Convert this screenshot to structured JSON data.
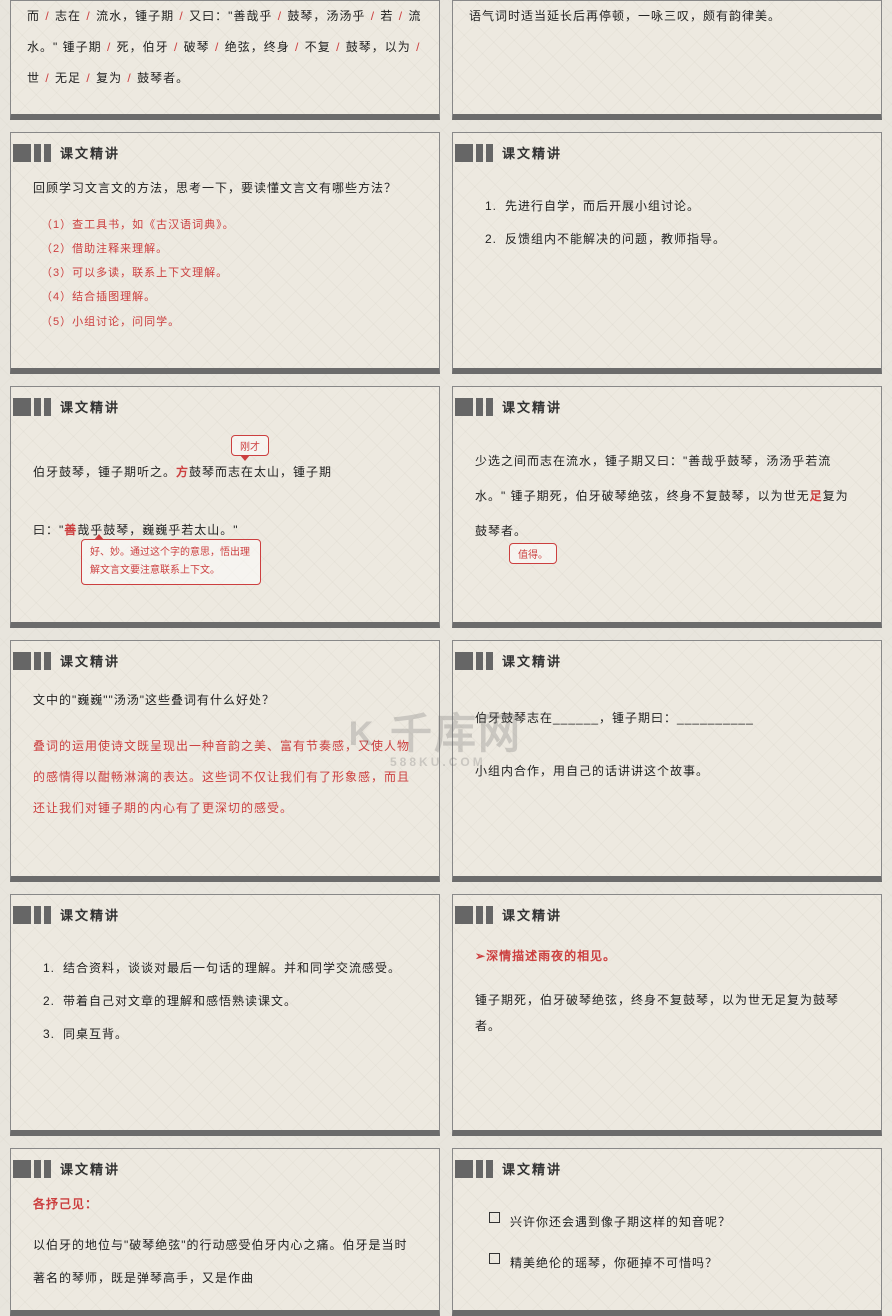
{
  "section_title": "课文精讲",
  "colors": {
    "red": "#cc3f3f",
    "bg": "#ede9e0",
    "border_bottom": "#6b6b6b",
    "text": "#222222"
  },
  "slides": {
    "s1_left": {
      "text_parts": [
        "而",
        "志在",
        "流水，锺子期",
        "又曰：\"善哉乎",
        "鼓琴，汤汤乎",
        "若",
        "流水。\" 锺子期",
        "死，伯牙",
        "破琴",
        "绝弦，终身",
        "不复",
        "鼓琴，以为",
        "世",
        "无足",
        "复为",
        "鼓琴者。"
      ]
    },
    "s1_right": {
      "text": "语气词时适当延长后再停顿，一咏三叹，颇有韵律美。"
    },
    "s2_left": {
      "question": "回顾学习文言文的方法，思考一下，要读懂文言文有哪些方法？",
      "items": [
        "（1）查工具书，如《古汉语词典》。",
        "（2）借助注释来理解。",
        "（3）可以多读，联系上下文理解。",
        "（4）结合插图理解。",
        "（5）小组讨论，问同学。"
      ]
    },
    "s2_right": {
      "items": [
        "先进行自学，而后开展小组讨论。",
        "反馈组内不能解决的问题，教师指导。"
      ]
    },
    "s3_left": {
      "callout1": "刚才",
      "line1_pre": "伯牙鼓琴，锺子期听之。",
      "fang": "方",
      "line1_post": "鼓琴而志在太山，锺子期",
      "line2_pre": "曰：\"",
      "shan": "善",
      "line2_post": "哉乎鼓琴，巍巍乎若太山。\"",
      "callout2": "好、妙。通过这个字的意思，悟出理解文言文要注意联系上下文。"
    },
    "s3_right": {
      "text": "少选之间而志在流水，锺子期又曰：\"善哉乎鼓琴，汤汤乎若流水。\" 锺子期死，伯牙破琴绝弦，终身不复鼓琴，以为世无",
      "zu": "足",
      "text_end": "复为鼓琴者。",
      "callout3": "值得。"
    },
    "s4_left": {
      "question": "文中的\"巍巍\"\"汤汤\"这些叠词有什么好处？",
      "answer": "叠词的运用使诗文既呈现出一种音韵之美、富有节奏感，又使人物的感情得以酣畅淋漓的表达。这些词不仅让我们有了形象感，而且还让我们对锺子期的内心有了更深切的感受。"
    },
    "s4_right": {
      "line1": "伯牙鼓琴志在______，锺子期曰：__________",
      "line2": "小组内合作，用自己的话讲讲这个故事。"
    },
    "s5_left": {
      "items": [
        "结合资料，谈谈对最后一句话的理解。并和同学交流感受。",
        "带着自己对文章的理解和感悟熟读课文。",
        "同桌互背。"
      ]
    },
    "s5_right": {
      "heading": "深情描述雨夜的相见。",
      "text": "锺子期死，伯牙破琴绝弦，终身不复鼓琴，以为世无足复为鼓琴者。"
    },
    "s6_left": {
      "heading": "各抒己见：",
      "text": "以伯牙的地位与\"破琴绝弦\"的行动感受伯牙内心之痛。伯牙是当时著名的琴师，既是弹琴高手，又是作曲"
    },
    "s6_right": {
      "items": [
        "兴许你还会遇到像子期这样的知音呢？",
        "精美绝伦的瑶琴，你砸掉不可惜吗？"
      ]
    }
  },
  "watermark": {
    "logo": "K",
    "main": "千库网",
    "sub": "588KU.COM"
  }
}
